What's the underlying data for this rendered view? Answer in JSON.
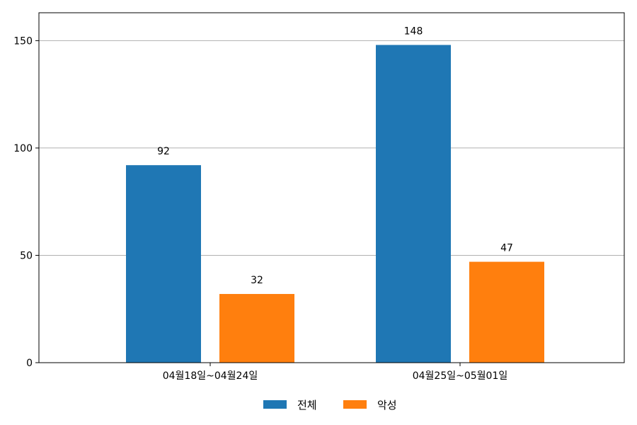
{
  "chart_data": {
    "type": "bar",
    "categories": [
      "04월18일~04월24일",
      "04월25일~05월01일"
    ],
    "series": [
      {
        "name": "전체",
        "values": [
          92,
          148
        ],
        "color": "#1f77b4"
      },
      {
        "name": "악성",
        "values": [
          32,
          47
        ],
        "color": "#ff7f0e"
      }
    ],
    "ylim": [
      0,
      163
    ],
    "yticks": [
      0,
      50,
      100,
      150
    ],
    "grid": "y",
    "legend_position": "bottom-center"
  }
}
